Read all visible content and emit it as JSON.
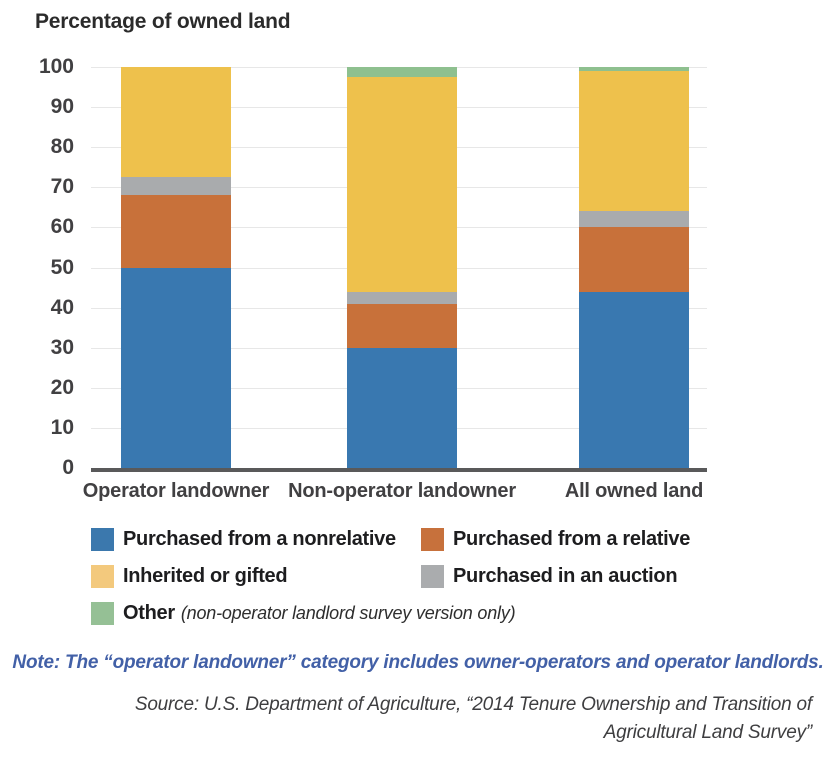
{
  "title": "Percentage of owned land",
  "chart_data": {
    "type": "bar",
    "stacked": true,
    "title": "Percentage of owned land",
    "xlabel": "",
    "ylabel": "Percentage of owned land",
    "ylim": [
      0,
      100
    ],
    "yticks": [
      0,
      10,
      20,
      30,
      40,
      50,
      60,
      70,
      80,
      90,
      100
    ],
    "grid": true,
    "legend_position": "bottom",
    "categories": [
      "Operator landowner",
      "Non-operator landowner",
      "All owned land"
    ],
    "series": [
      {
        "name": "Purchased from a nonrelative",
        "color": "#3978b0",
        "values": [
          50,
          30,
          44
        ]
      },
      {
        "name": "Purchased from a relative",
        "color": "#c8713a",
        "values": [
          18,
          11,
          16
        ]
      },
      {
        "name": "Purchased in an auction",
        "color": "#a9abad",
        "values": [
          4.5,
          3,
          4
        ]
      },
      {
        "name": "Inherited or gifted",
        "color": "#eec14c",
        "values": [
          27.5,
          53.5,
          35
        ]
      },
      {
        "name": "Other",
        "color": "#8ec08f",
        "values": [
          0,
          2.5,
          1
        ]
      }
    ]
  },
  "legend": {
    "items": [
      {
        "label": "Purchased from a nonrelative",
        "color": "#3b78ad"
      },
      {
        "label": "Purchased from a relative",
        "color": "#c7713c"
      },
      {
        "label": "Inherited or gifted",
        "color": "#f3c97d"
      },
      {
        "label": "Purchased in an auction",
        "color": "#aaacae"
      },
      {
        "label": "Other",
        "suffix": "(non-operator landlord survey version only)",
        "color": "#95c095"
      }
    ]
  },
  "note": "Note: The “operator landowner” category includes owner-operators and operator landlords.",
  "source": {
    "line1": "Source: U.S. Department of Agriculture, “2014 Tenure Ownership and Transition of",
    "line2": "Agricultural Land Survey”"
  }
}
